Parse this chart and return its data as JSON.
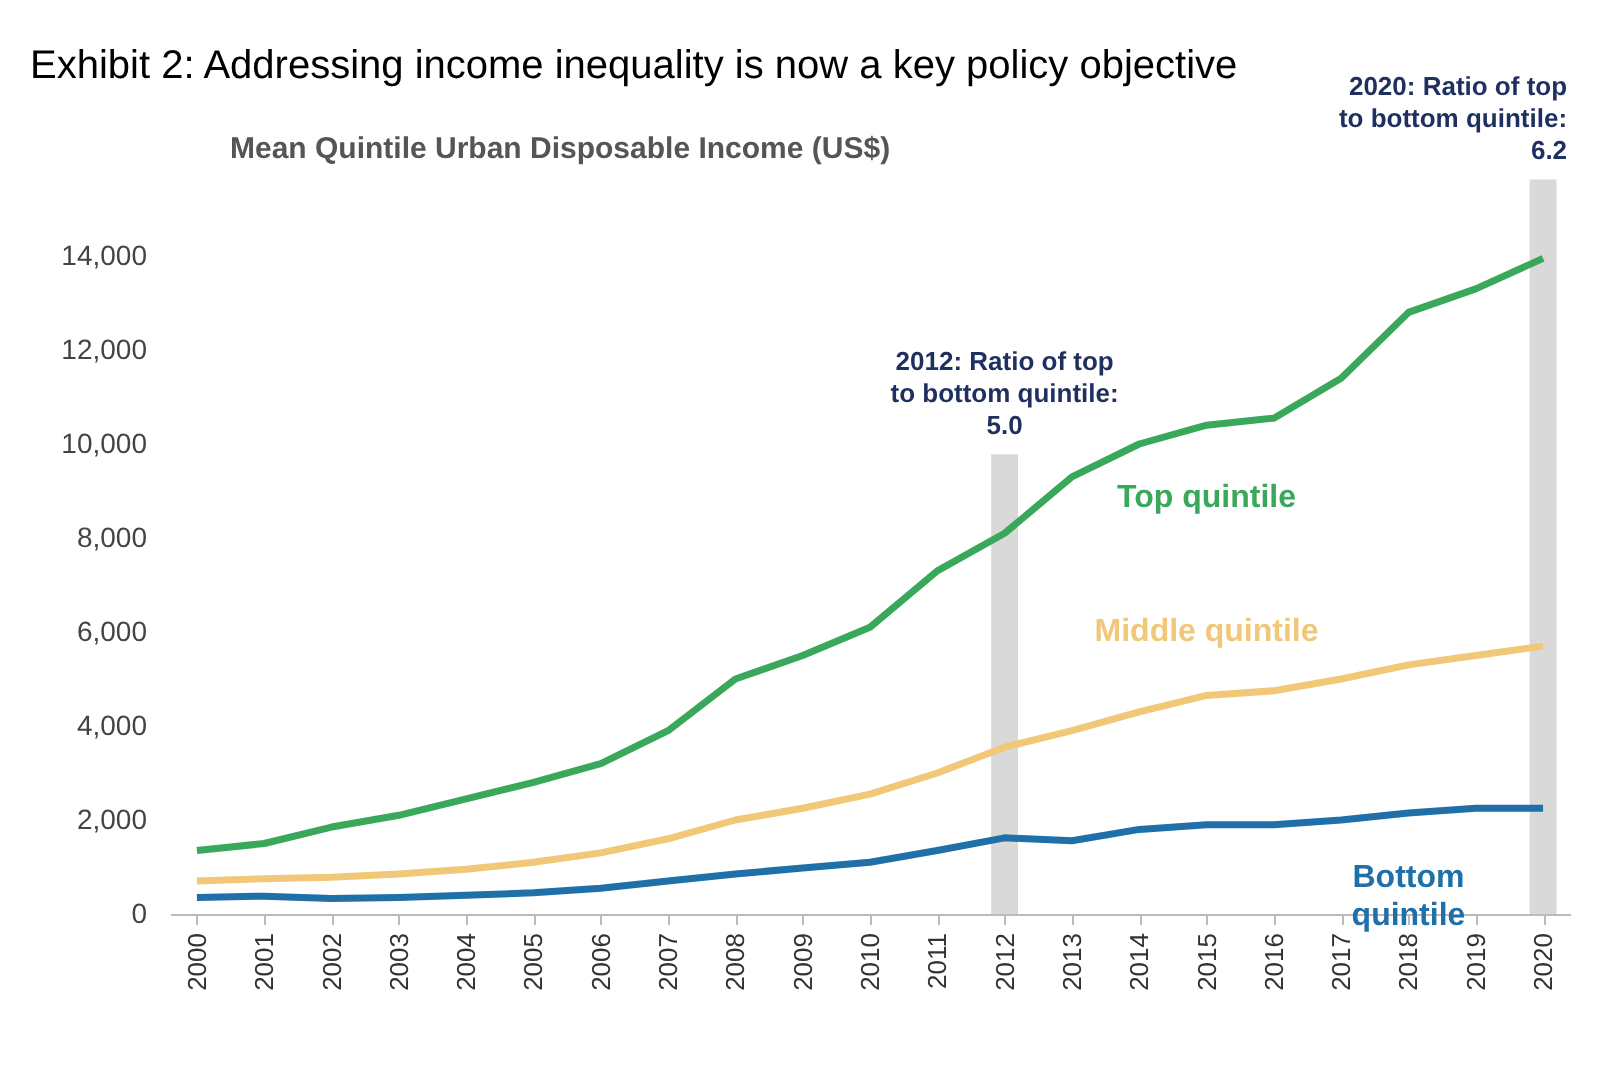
{
  "chart_data": {
    "type": "line",
    "title": "Exhibit 2:  Addressing income inequality is now a key policy objective",
    "subtitle": "Mean Quintile Urban Disposable Income (US$)",
    "x": [
      2000,
      2001,
      2002,
      2003,
      2004,
      2005,
      2006,
      2007,
      2008,
      2009,
      2010,
      2011,
      2012,
      2013,
      2014,
      2015,
      2016,
      2017,
      2018,
      2019,
      2020
    ],
    "series": [
      {
        "name": "Top quintile",
        "color": "#3aa85a",
        "values": [
          1350,
          1500,
          1850,
          2100,
          2450,
          2800,
          3200,
          3900,
          5000,
          5500,
          6100,
          7300,
          8100,
          9300,
          10000,
          10400,
          10550,
          11400,
          12800,
          13300,
          13950
        ]
      },
      {
        "name": "Middle quintile",
        "color": "#f0c878",
        "values": [
          700,
          750,
          780,
          850,
          950,
          1100,
          1300,
          1600,
          2000,
          2250,
          2550,
          3000,
          3550,
          3900,
          4300,
          4650,
          4750,
          5000,
          5300,
          5500,
          5700
        ]
      },
      {
        "name": "Bottom quintile",
        "color": "#1f6fa8",
        "values": [
          350,
          380,
          330,
          350,
          400,
          450,
          550,
          700,
          850,
          980,
          1100,
          1350,
          1620,
          1560,
          1800,
          1900,
          1900,
          2000,
          2150,
          2250,
          2250
        ]
      }
    ],
    "xlim": [
      1999.6,
      2020.4
    ],
    "xticks": [
      2000,
      2001,
      2002,
      2003,
      2004,
      2005,
      2006,
      2007,
      2008,
      2009,
      2010,
      2011,
      2012,
      2013,
      2014,
      2015,
      2016,
      2017,
      2018,
      2019,
      2020
    ],
    "ylim": [
      0,
      14000
    ],
    "yticks": [
      0,
      {
        "value": 2000,
        "label": "2,000"
      },
      {
        "value": 4000,
        "label": "4,000"
      },
      {
        "value": 6000,
        "label": "6,000"
      },
      {
        "value": 8000,
        "label": "8,000"
      },
      {
        "value": 10000,
        "label": "10,000"
      },
      {
        "value": 12000,
        "label": "12,000"
      },
      {
        "value": 14000,
        "label": "14,000"
      }
    ],
    "bands": [
      {
        "axis": "x",
        "from": 2011.8,
        "to": 2012.2,
        "label": "2012: Ratio of top to bottom quintile: 5.0",
        "color": "#d9d9d9"
      },
      {
        "axis": "x",
        "from": 2019.8,
        "to": 2020.2,
        "label": "2020: Ratio of top to bottom quintile: 6.2",
        "color": "#d9d9d9"
      }
    ],
    "grid": false,
    "legend": false
  }
}
